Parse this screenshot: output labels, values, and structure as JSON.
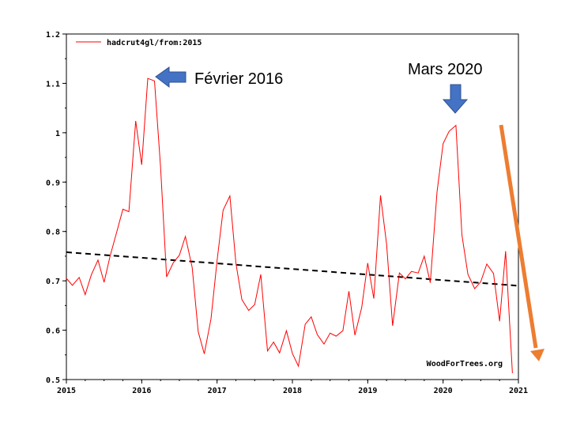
{
  "chart_data": {
    "type": "line",
    "xlim": [
      2015,
      2021
    ],
    "ylim": [
      0.5,
      1.2
    ],
    "x_ticks": [
      "2015",
      "2016",
      "2017",
      "2018",
      "2019",
      "2020",
      "2021"
    ],
    "y_ticks": [
      "0.5",
      "0.6",
      "0.7",
      "0.8",
      "0.9",
      "1",
      "1.1",
      "1.2"
    ],
    "legend": {
      "label": "hadcrut4gl/from:2015",
      "position": "top-left"
    },
    "credit": "WoodForTrees.org",
    "grid": false,
    "series": [
      {
        "name": "hadcrut4gl/from:2015",
        "color": "#ff0000",
        "x": [
          2015.0,
          2015.08,
          2015.17,
          2015.25,
          2015.33,
          2015.42,
          2015.5,
          2015.58,
          2015.67,
          2015.75,
          2015.83,
          2015.92,
          2016.0,
          2016.08,
          2016.17,
          2016.25,
          2016.33,
          2016.42,
          2016.5,
          2016.58,
          2016.67,
          2016.75,
          2016.83,
          2016.92,
          2017.0,
          2017.08,
          2017.17,
          2017.25,
          2017.33,
          2017.42,
          2017.5,
          2017.58,
          2017.67,
          2017.75,
          2017.83,
          2017.92,
          2018.0,
          2018.08,
          2018.17,
          2018.25,
          2018.33,
          2018.42,
          2018.5,
          2018.58,
          2018.67,
          2018.75,
          2018.83,
          2018.92,
          2019.0,
          2019.08,
          2019.17,
          2019.25,
          2019.33,
          2019.42,
          2019.5,
          2019.58,
          2019.67,
          2019.75,
          2019.83,
          2019.92,
          2020.0,
          2020.08,
          2020.17,
          2020.25,
          2020.33,
          2020.42,
          2020.5,
          2020.58,
          2020.67,
          2020.75,
          2020.83,
          2020.92
        ],
        "values": [
          0.705,
          0.691,
          0.707,
          0.672,
          0.712,
          0.742,
          0.697,
          0.75,
          0.8,
          0.845,
          0.84,
          1.024,
          0.935,
          1.11,
          1.105,
          0.93,
          0.708,
          0.737,
          0.752,
          0.79,
          0.727,
          0.597,
          0.552,
          0.623,
          0.741,
          0.843,
          0.872,
          0.736,
          0.662,
          0.64,
          0.652,
          0.713,
          0.558,
          0.576,
          0.554,
          0.599,
          0.553,
          0.527,
          0.612,
          0.627,
          0.591,
          0.572,
          0.594,
          0.588,
          0.599,
          0.679,
          0.59,
          0.646,
          0.736,
          0.664,
          0.873,
          0.774,
          0.609,
          0.716,
          0.704,
          0.719,
          0.716,
          0.75,
          0.696,
          0.88,
          0.978,
          1.003,
          1.015,
          0.793,
          0.713,
          0.684,
          0.698,
          0.734,
          0.715,
          0.618,
          0.76,
          0.513
        ]
      }
    ],
    "trend_line": {
      "x": [
        2015.0,
        2021.0
      ],
      "values": [
        0.758,
        0.69
      ],
      "color": "#000000",
      "style": "dashed"
    },
    "annotations": [
      {
        "text": "Février 2016",
        "arrow_direction": "left",
        "arrow_color": "#4472c4",
        "target_x": 2016.17
      },
      {
        "text": "Mars 2020",
        "arrow_direction": "down",
        "arrow_color": "#4472c4",
        "target_x": 2020.17
      }
    ],
    "decline_arrow": {
      "color": "#ed7d31",
      "from": [
        2020.8,
        1.015
      ],
      "to": [
        2021.3,
        0.535
      ]
    }
  }
}
